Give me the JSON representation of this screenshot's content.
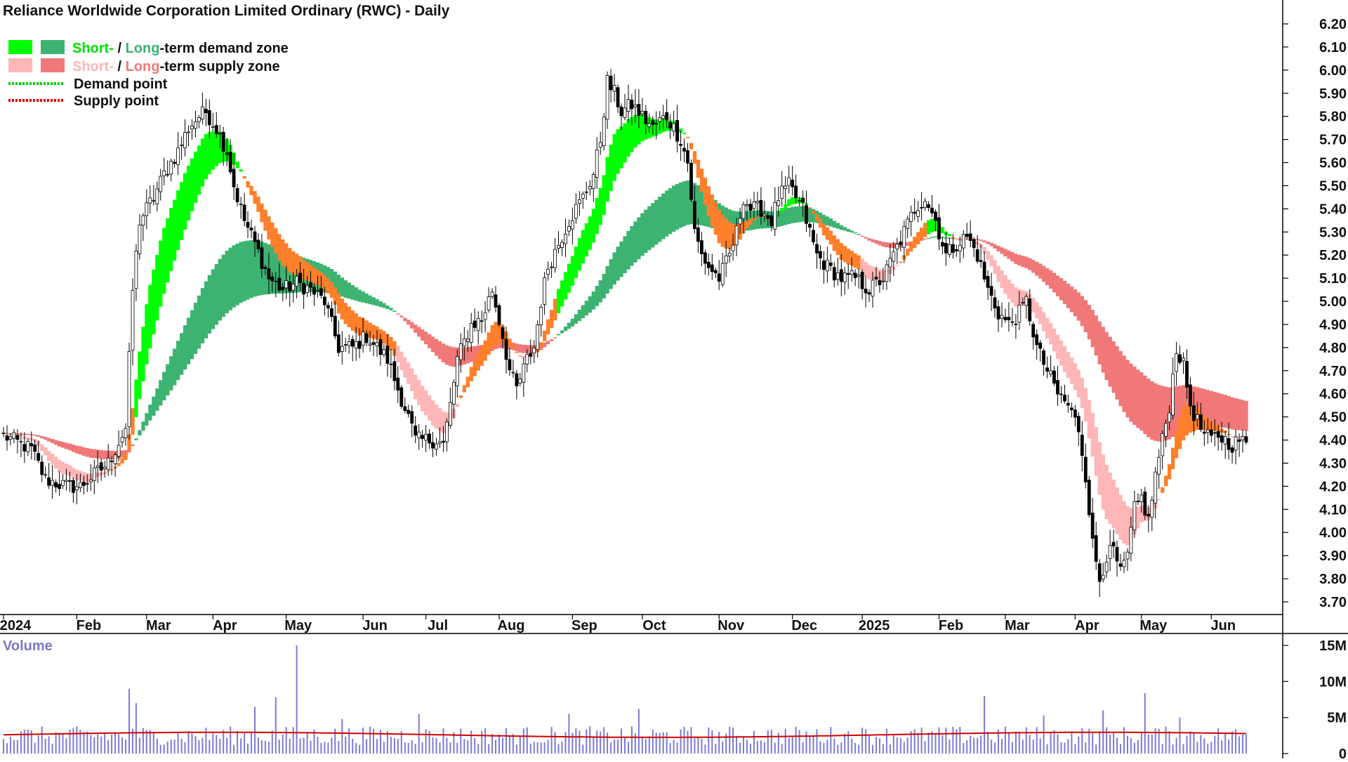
{
  "chart_data": {
    "type": "candlestick",
    "title": "Reliance Worldwide Corporation Limited Ordinary (RWC) - Daily",
    "legend": {
      "placement": "top-left",
      "entries": [
        {
          "prefix_short": "Short-",
          "sep": " / ",
          "prefix_long": "Long",
          "suffix": "-term demand zone",
          "short_color": "#00ff00",
          "long_color": "#3cb371"
        },
        {
          "prefix_short": "Short-",
          "sep": " / ",
          "prefix_long": "Long",
          "suffix": "-term supply zone",
          "short_color": "#ffb6b6",
          "long_color": "#f07878"
        },
        {
          "label": "Demand point",
          "color": "#00cc00"
        },
        {
          "label": "Supply point",
          "color": "#e00000"
        }
      ]
    },
    "price_axis": {
      "ticks": [
        "6.20",
        "6.10",
        "6.00",
        "5.90",
        "5.80",
        "5.70",
        "5.60",
        "5.50",
        "5.40",
        "5.30",
        "5.20",
        "5.10",
        "5.00",
        "4.90",
        "4.80",
        "4.70",
        "4.60",
        "4.50",
        "4.40",
        "4.30",
        "4.20",
        "4.10",
        "4.00",
        "3.90",
        "3.80",
        "3.70"
      ],
      "range": [
        3.62,
        6.3
      ]
    },
    "time_axis": {
      "labels": [
        "2024",
        "Feb",
        "Mar",
        "Apr",
        "May",
        "Jun",
        "Jul",
        "Aug",
        "Sep",
        "Oct",
        "Nov",
        "Dec",
        "2025",
        "Feb",
        "Mar",
        "Apr",
        "May",
        "Jun"
      ],
      "positions": [
        0,
        21,
        41,
        60,
        81,
        103,
        121,
        142,
        163,
        183,
        205,
        226,
        246,
        268,
        287,
        307,
        326,
        346
      ]
    },
    "price_anchors": [
      [
        0,
        4.42
      ],
      [
        8,
        4.36
      ],
      [
        12,
        4.23
      ],
      [
        18,
        4.2
      ],
      [
        22,
        4.2
      ],
      [
        30,
        4.3
      ],
      [
        35,
        4.45
      ],
      [
        37,
        5.05
      ],
      [
        39,
        5.35
      ],
      [
        43,
        5.45
      ],
      [
        46,
        5.55
      ],
      [
        50,
        5.65
      ],
      [
        53,
        5.75
      ],
      [
        56,
        5.8
      ],
      [
        58,
        5.82
      ],
      [
        61,
        5.75
      ],
      [
        64,
        5.65
      ],
      [
        66,
        5.5
      ],
      [
        69,
        5.35
      ],
      [
        72,
        5.25
      ],
      [
        76,
        5.1
      ],
      [
        80,
        5.05
      ],
      [
        84,
        5.08
      ],
      [
        88,
        5.05
      ],
      [
        92,
        5.0
      ],
      [
        96,
        4.8
      ],
      [
        100,
        4.8
      ],
      [
        104,
        4.85
      ],
      [
        107,
        4.8
      ],
      [
        110,
        4.75
      ],
      [
        113,
        4.62
      ],
      [
        116,
        4.5
      ],
      [
        118,
        4.4
      ],
      [
        122,
        4.4
      ],
      [
        124,
        4.4
      ],
      [
        126,
        4.38
      ],
      [
        128,
        4.55
      ],
      [
        130,
        4.75
      ],
      [
        134,
        4.9
      ],
      [
        137,
        4.92
      ],
      [
        140,
        5.05
      ],
      [
        143,
        4.85
      ],
      [
        145,
        4.7
      ],
      [
        147,
        4.62
      ],
      [
        150,
        4.75
      ],
      [
        152,
        4.8
      ],
      [
        154,
        5.0
      ],
      [
        156,
        5.15
      ],
      [
        159,
        5.25
      ],
      [
        162,
        5.35
      ],
      [
        166,
        5.45
      ],
      [
        169,
        5.55
      ],
      [
        171,
        5.7
      ],
      [
        173,
        5.95
      ],
      [
        175,
        5.9
      ],
      [
        177,
        5.82
      ],
      [
        180,
        5.85
      ],
      [
        183,
        5.8
      ],
      [
        186,
        5.75
      ],
      [
        188,
        5.78
      ],
      [
        190,
        5.8
      ],
      [
        192,
        5.75
      ],
      [
        194,
        5.7
      ],
      [
        196,
        5.6
      ],
      [
        198,
        5.3
      ],
      [
        200,
        5.2
      ],
      [
        202,
        5.15
      ],
      [
        205,
        5.1
      ],
      [
        208,
        5.2
      ],
      [
        210,
        5.3
      ],
      [
        212,
        5.45
      ],
      [
        214,
        5.4
      ],
      [
        217,
        5.4
      ],
      [
        220,
        5.35
      ],
      [
        222,
        5.45
      ],
      [
        225,
        5.5
      ],
      [
        227,
        5.45
      ],
      [
        229,
        5.4
      ],
      [
        231,
        5.3
      ],
      [
        233,
        5.2
      ],
      [
        236,
        5.15
      ],
      [
        240,
        5.1
      ],
      [
        244,
        5.1
      ],
      [
        248,
        5.05
      ],
      [
        252,
        5.1
      ],
      [
        255,
        5.2
      ],
      [
        258,
        5.3
      ],
      [
        261,
        5.4
      ],
      [
        264,
        5.45
      ],
      [
        267,
        5.35
      ],
      [
        270,
        5.2
      ],
      [
        273,
        5.25
      ],
      [
        276,
        5.28
      ],
      [
        279,
        5.2
      ],
      [
        282,
        5.05
      ],
      [
        285,
        4.95
      ],
      [
        288,
        4.9
      ],
      [
        291,
        4.95
      ],
      [
        293,
        5.0
      ],
      [
        296,
        4.8
      ],
      [
        299,
        4.7
      ],
      [
        302,
        4.6
      ],
      [
        305,
        4.55
      ],
      [
        308,
        4.45
      ],
      [
        310,
        4.25
      ],
      [
        312,
        3.95
      ],
      [
        314,
        3.8
      ],
      [
        316,
        3.9
      ],
      [
        318,
        3.92
      ],
      [
        320,
        3.82
      ],
      [
        322,
        3.9
      ],
      [
        324,
        4.1
      ],
      [
        326,
        4.15
      ],
      [
        328,
        4.05
      ],
      [
        330,
        4.25
      ],
      [
        332,
        4.4
      ],
      [
        334,
        4.55
      ],
      [
        336,
        4.8
      ],
      [
        338,
        4.72
      ],
      [
        340,
        4.55
      ],
      [
        342,
        4.48
      ],
      [
        344,
        4.42
      ],
      [
        346,
        4.4
      ],
      [
        348,
        4.42
      ],
      [
        350,
        4.4
      ],
      [
        352,
        4.38
      ],
      [
        354,
        4.4
      ],
      [
        356,
        4.38
      ]
    ],
    "volume_axis": {
      "label": "Volume",
      "ticks": [
        "15M",
        "10M",
        "5M",
        "0"
      ],
      "range_millions": [
        0,
        16.5
      ]
    },
    "volume_spikes_millions": [
      [
        36,
        9.0
      ],
      [
        38,
        7.0
      ],
      [
        72,
        6.5
      ],
      [
        78,
        7.8
      ],
      [
        84,
        15.0
      ],
      [
        97,
        4.8
      ],
      [
        119,
        5.5
      ],
      [
        162,
        5.5
      ],
      [
        182,
        6.2
      ],
      [
        281,
        8.0
      ],
      [
        298,
        5.3
      ],
      [
        315,
        6.0
      ],
      [
        327,
        8.4
      ],
      [
        337,
        5.0
      ]
    ],
    "volume_average_millions": 2.6,
    "colors": {
      "short_demand": "#00ff00",
      "long_demand": "#3cb371",
      "short_supply": "#ffb6b6",
      "long_supply": "#f07878",
      "overlap": "#ff7f2a",
      "volume_bar": "#7b7bd6",
      "volume_avg": "#d00000",
      "candle": "#000000"
    }
  }
}
